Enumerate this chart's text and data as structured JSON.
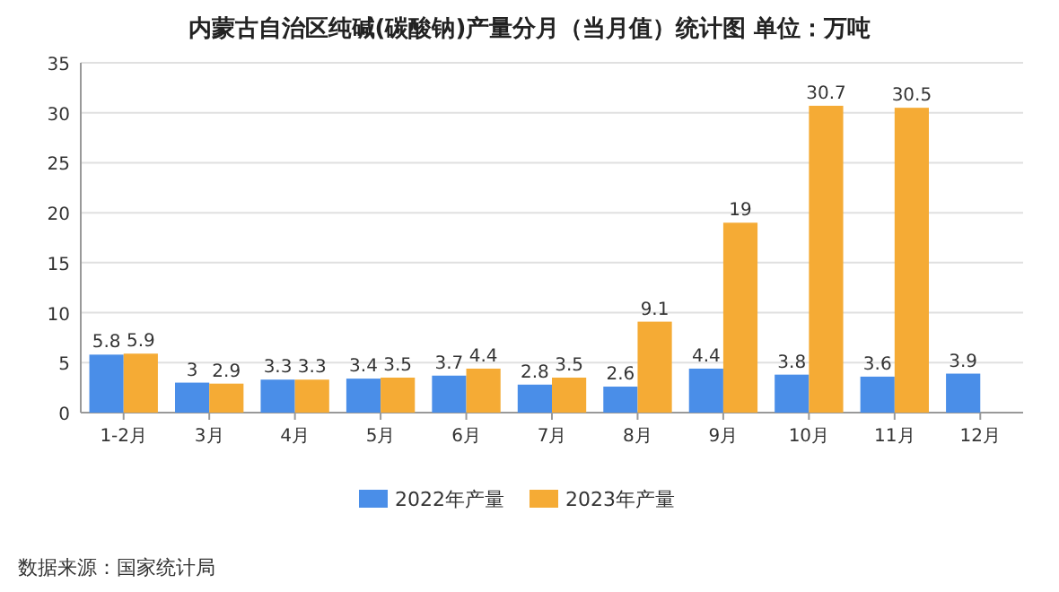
{
  "chart_data": {
    "type": "bar",
    "title": "内蒙古自治区纯碱(碳酸钠)产量分月（当月值）统计图 单位：万吨",
    "categories": [
      "1-2月",
      "3月",
      "4月",
      "5月",
      "6月",
      "7月",
      "8月",
      "9月",
      "10月",
      "11月",
      "12月"
    ],
    "series": [
      {
        "name": "2022年产量",
        "color": "#4a8ee8",
        "values": [
          5.8,
          3,
          3.3,
          3.4,
          3.7,
          2.8,
          2.6,
          4.4,
          3.8,
          3.6,
          3.9
        ]
      },
      {
        "name": "2023年产量",
        "color": "#f5ab35",
        "values": [
          5.9,
          2.9,
          3.3,
          3.5,
          4.4,
          3.5,
          9.1,
          19,
          30.7,
          30.5,
          null
        ]
      }
    ],
    "ylim": [
      0,
      35
    ],
    "yticks": [
      0,
      5,
      10,
      15,
      20,
      25,
      30,
      35
    ],
    "grid": "y",
    "legend": "bottom",
    "data_labels": true,
    "annotations": [
      "数据来源：国家统计局"
    ]
  }
}
